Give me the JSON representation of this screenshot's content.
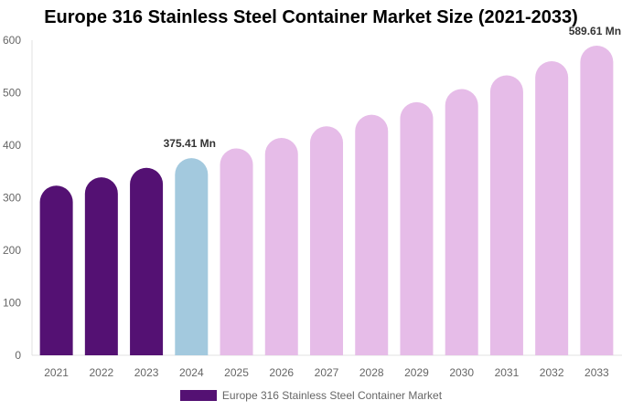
{
  "chart_data": {
    "type": "bar",
    "title": "Europe 316 Stainless Steel Container Market Size (2021-2033)",
    "categories": [
      "2021",
      "2022",
      "2023",
      "2024",
      "2025",
      "2026",
      "2027",
      "2028",
      "2029",
      "2030",
      "2031",
      "2032",
      "2033"
    ],
    "series": [
      {
        "name": "Europe 316 Stainless Steel Container Market",
        "values": [
          323,
          339,
          357,
          375.41,
          394,
          414,
          436,
          458,
          482,
          507,
          533,
          560,
          589.61
        ]
      }
    ],
    "data_labels": {
      "3": "375.41 Mn",
      "12": "589.61 Mn"
    },
    "ylim": [
      0,
      600
    ],
    "yticks": [
      0,
      100,
      200,
      300,
      400,
      500,
      600
    ],
    "grid": false,
    "legend": "bottom",
    "colors": {
      "historical": "#541173",
      "current": "#a3c9de",
      "forecast": "#e6bce8"
    }
  }
}
